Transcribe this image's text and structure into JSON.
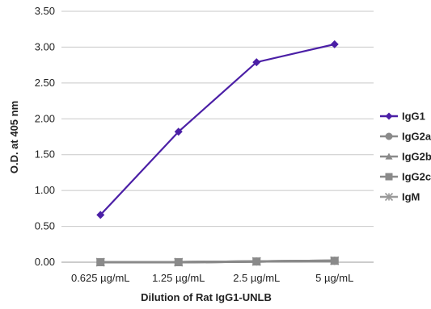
{
  "chart_data": {
    "type": "line",
    "title": "",
    "xlabel": "Dilution of Rat IgG1-UNLB",
    "ylabel": "O.D. at 405 nm",
    "categories": [
      "0.625 µg/mL",
      "1.25 µg/mL",
      "2.5 µg/mL",
      "5 µg/mL"
    ],
    "ylim": [
      0,
      3.5
    ],
    "yticks": [
      "0.00",
      "0.50",
      "1.00",
      "1.50",
      "2.00",
      "2.50",
      "3.00",
      "3.50"
    ],
    "grid": "horizontal",
    "legend_position": "right",
    "series": [
      {
        "name": "IgG1",
        "values": [
          0.66,
          1.82,
          2.79,
          3.04
        ],
        "color": "#4b1fa6",
        "marker": "diamond"
      },
      {
        "name": "IgG2a",
        "values": [
          0.0,
          0.0,
          0.01,
          0.02
        ],
        "color": "#8a8a8a",
        "marker": "circle"
      },
      {
        "name": "IgG2b",
        "values": [
          0.0,
          0.0,
          0.01,
          0.02
        ],
        "color": "#8a8a8a",
        "marker": "triangle"
      },
      {
        "name": "IgG2c",
        "values": [
          0.0,
          0.0,
          0.01,
          0.02
        ],
        "color": "#8a8a8a",
        "marker": "square"
      },
      {
        "name": "IgM",
        "values": [
          0.0,
          0.0,
          0.01,
          0.02
        ],
        "color": "#9a9a9a",
        "marker": "star"
      }
    ]
  }
}
